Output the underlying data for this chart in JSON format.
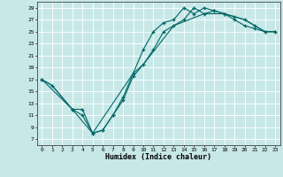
{
  "xlabel": "Humidex (Indice chaleur)",
  "background_color": "#c8e8e8",
  "grid_color": "#ffffff",
  "line_color": "#006666",
  "xlim": [
    -0.5,
    23.5
  ],
  "ylim": [
    6,
    30
  ],
  "xticks": [
    0,
    1,
    2,
    3,
    4,
    5,
    6,
    7,
    8,
    9,
    10,
    11,
    12,
    13,
    14,
    15,
    16,
    17,
    18,
    19,
    20,
    21,
    22,
    23
  ],
  "yticks": [
    7,
    9,
    11,
    13,
    15,
    17,
    19,
    21,
    23,
    25,
    27,
    29
  ],
  "line1_x": [
    0,
    1,
    3,
    4,
    5,
    6,
    7,
    8,
    9,
    10,
    11,
    12,
    13,
    14,
    15,
    16,
    17,
    18,
    19,
    20,
    21,
    22,
    23
  ],
  "line1_y": [
    17,
    16,
    12,
    12,
    8,
    8.5,
    11,
    14,
    18,
    22,
    25,
    26.5,
    27,
    29,
    28,
    29,
    28.5,
    28,
    27,
    26,
    25.5,
    25,
    25
  ],
  "line2_x": [
    0,
    3,
    4,
    5,
    6,
    7,
    8,
    9,
    10,
    11,
    12,
    13,
    14,
    15,
    16,
    17,
    18,
    19,
    20,
    21,
    22,
    23
  ],
  "line2_y": [
    17,
    12,
    11,
    8,
    8.5,
    11,
    13.5,
    17.5,
    19.5,
    22,
    25,
    26,
    27,
    29,
    28,
    28.5,
    28,
    27.5,
    27,
    26,
    25,
    25
  ],
  "line3_x": [
    0,
    1,
    3,
    5,
    9,
    10,
    13,
    16,
    18,
    20,
    22,
    23
  ],
  "line3_y": [
    17,
    16,
    12,
    8,
    18,
    19.5,
    26,
    28,
    28,
    27,
    25,
    25
  ]
}
